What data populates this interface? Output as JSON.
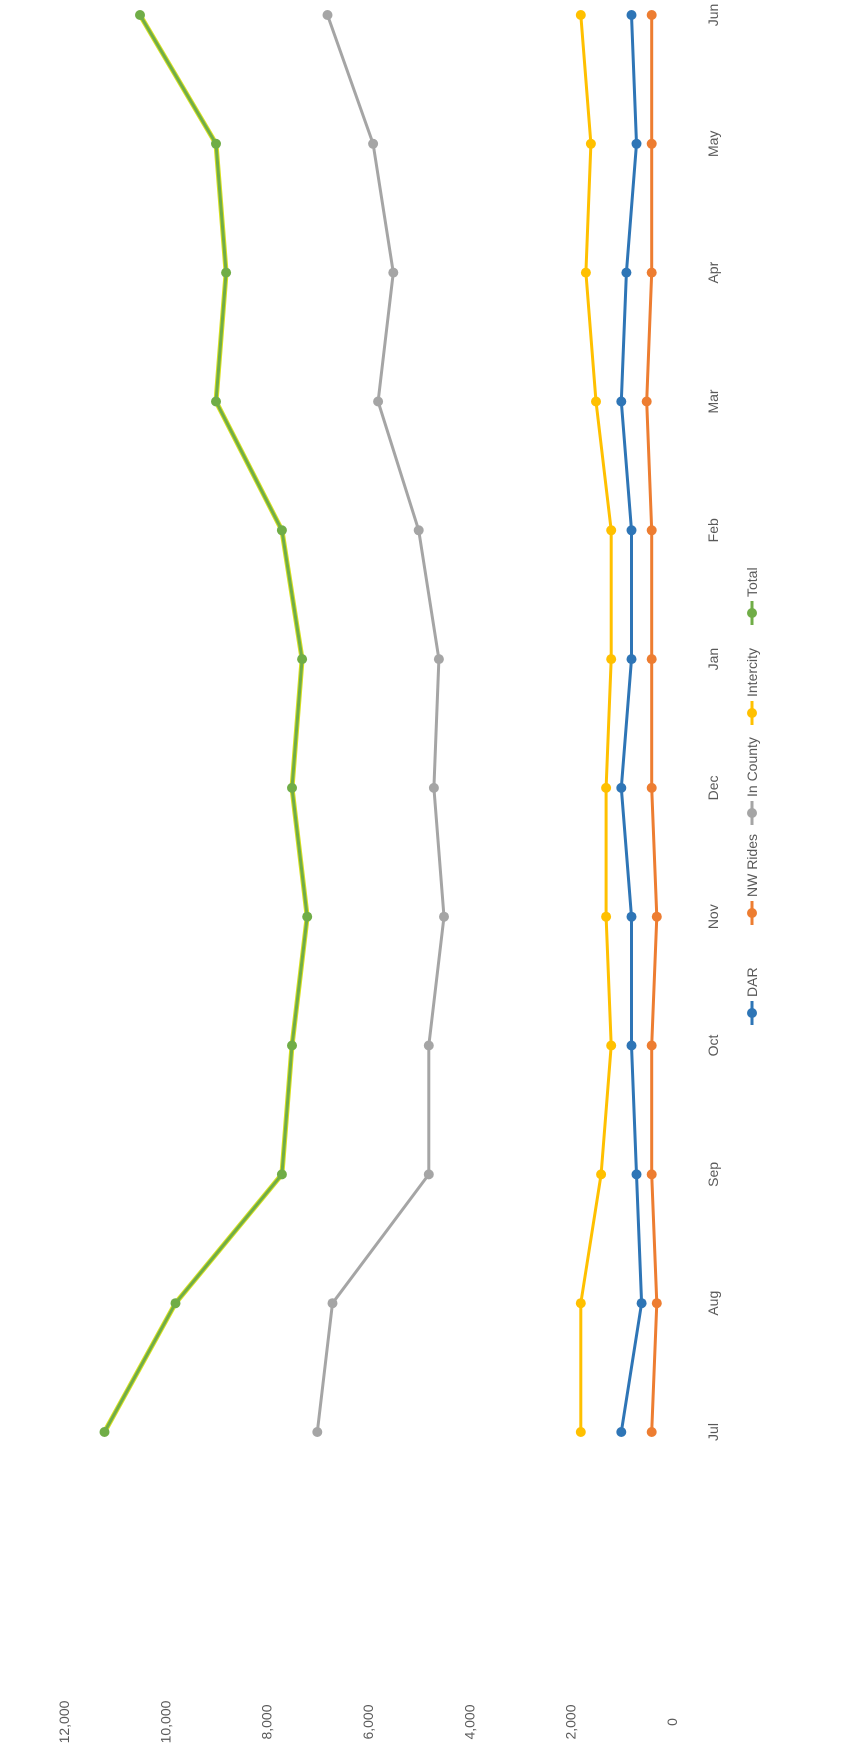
{
  "chart_data": {
    "type": "line",
    "orientation": "rotated",
    "categories": [
      "Jul",
      "Aug",
      "Sep",
      "Oct",
      "Nov",
      "Dec",
      "Jan",
      "Feb",
      "Mar",
      "Apr",
      "May",
      "Jun"
    ],
    "ylim": [
      0,
      12000
    ],
    "yticks": [
      0,
      2000,
      4000,
      6000,
      8000,
      10000,
      12000
    ],
    "ytick_labels": [
      "0",
      "2,000",
      "4,000",
      "6,000",
      "8,000",
      "10,000",
      "12,000"
    ],
    "grid": false,
    "legend_position": "bottom",
    "series": [
      {
        "name": "DAR",
        "color": "#2e75b6",
        "values": [
          1000,
          600,
          700,
          800,
          800,
          1000,
          800,
          800,
          1000,
          900,
          700,
          800
        ]
      },
      {
        "name": "NW Rides",
        "color": "#ed7d31",
        "values": [
          400,
          300,
          400,
          400,
          300,
          400,
          400,
          400,
          500,
          400,
          400,
          400
        ]
      },
      {
        "name": "In County",
        "color": "#a5a5a5",
        "values": [
          7000,
          6700,
          4800,
          4800,
          4500,
          4700,
          4600,
          5000,
          5800,
          5500,
          5900,
          6800
        ]
      },
      {
        "name": "Intercity",
        "color": "#ffc000",
        "values": [
          1800,
          1800,
          1400,
          1200,
          1300,
          1300,
          1200,
          1200,
          1500,
          1700,
          1600,
          1800
        ]
      },
      {
        "name": "Total",
        "color": "#70ad47",
        "values": [
          11200,
          9800,
          7700,
          7500,
          7200,
          7500,
          7300,
          7700,
          9000,
          8800,
          9000,
          10500
        ]
      }
    ]
  }
}
